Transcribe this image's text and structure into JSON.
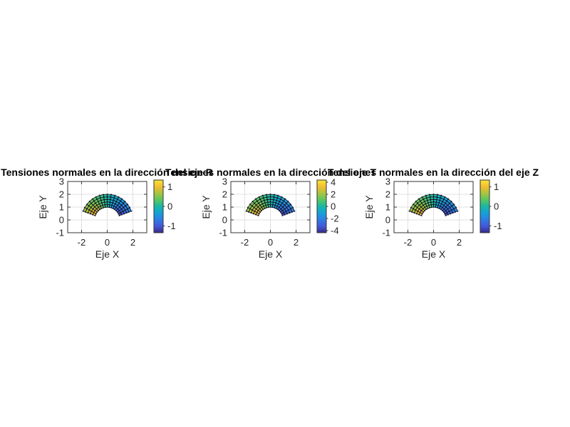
{
  "figure": {
    "background": "#ffffff"
  },
  "axis_style": {
    "axis_color": "#333333",
    "grid_color": "#e0e0e0",
    "tick_label_color": "#262626",
    "title_color": "#000000"
  },
  "colormap": {
    "name": "parula",
    "stops": [
      [
        0.0,
        "#352a87"
      ],
      [
        0.12,
        "#4457d8"
      ],
      [
        0.25,
        "#2f7de4"
      ],
      [
        0.37,
        "#15a0d8"
      ],
      [
        0.5,
        "#17b8a3"
      ],
      [
        0.62,
        "#57c665"
      ],
      [
        0.75,
        "#a8c53f"
      ],
      [
        0.87,
        "#f2bc2f"
      ],
      [
        1.0,
        "#f8e838"
      ]
    ]
  },
  "chart_data": [
    {
      "type": "heatmap",
      "title": "Tensiones normales en la dirección del eje R",
      "xlabel": "Eje X",
      "ylabel": "Eje Y",
      "xlim": [
        -3.08,
        3.08
      ],
      "ylim": [
        -1,
        3
      ],
      "xticks": [
        -2,
        0,
        2
      ],
      "yticks": [
        3,
        2,
        1,
        0,
        -1
      ],
      "grid": true,
      "mesh": {
        "shape": "annular-sector",
        "r_inner": 1,
        "r_outer": 2,
        "theta_start_deg": 20,
        "theta_end_deg": 160,
        "n_theta": 16,
        "n_r": 5
      },
      "field": {
        "description": "normal stress in R direction: positive (yellow) at left end, ~0 (teal) at top, negative (dark blue) at right end; magnitude largest at inner radius",
        "formula": "-cos(theta)*(1-0.55*(r-1))",
        "amplitude": 1.28
      },
      "colorbar": {
        "location": "right",
        "ticks": [
          1,
          0,
          -1
        ],
        "clim": [
          -1.35,
          1.35
        ]
      }
    },
    {
      "type": "heatmap",
      "title": "Tensiones normales en la dirección del eje T",
      "xlabel": "Eje X",
      "ylabel": "Eje Y",
      "xlim": [
        -3.08,
        3.08
      ],
      "ylim": [
        -1,
        3
      ],
      "xticks": [
        -2,
        0,
        2
      ],
      "yticks": [
        3,
        2,
        1,
        0,
        -1
      ],
      "grid": true,
      "mesh": {
        "shape": "annular-sector",
        "r_inner": 1,
        "r_outer": 2,
        "theta_start_deg": 20,
        "theta_end_deg": 160,
        "n_theta": 16,
        "n_r": 5
      },
      "field": {
        "description": "normal stress in T (theta) direction: same angular pattern, larger magnitude range",
        "formula": "-cos(theta)*(1-0.55*(r-1))",
        "amplitude": 4.13
      },
      "colorbar": {
        "location": "right",
        "ticks": [
          4,
          2,
          0,
          -2,
          -4
        ],
        "clim": [
          -4.35,
          4.35
        ]
      }
    },
    {
      "type": "heatmap",
      "title": "Tensiones normales en la dirección del eje Z",
      "xlabel": "Eje X",
      "ylabel": "Eje Y",
      "xlim": [
        -3.08,
        3.08
      ],
      "ylim": [
        -1,
        3
      ],
      "xticks": [
        -2,
        0,
        2
      ],
      "yticks": [
        3,
        2,
        1,
        0,
        -1
      ],
      "grid": true,
      "mesh": {
        "shape": "annular-sector",
        "r_inner": 1,
        "r_outer": 2,
        "theta_start_deg": 20,
        "theta_end_deg": 160,
        "n_theta": 16,
        "n_r": 5
      },
      "field": {
        "description": "normal stress in Z direction: positive (yellow) at left end, negative (dark blue) at right end",
        "formula": "-cos(theta)*(1-0.55*(r-1))",
        "amplitude": 1.28
      },
      "colorbar": {
        "location": "right",
        "ticks": [
          1,
          0,
          -1
        ],
        "clim": [
          -1.35,
          1.35
        ]
      }
    }
  ]
}
